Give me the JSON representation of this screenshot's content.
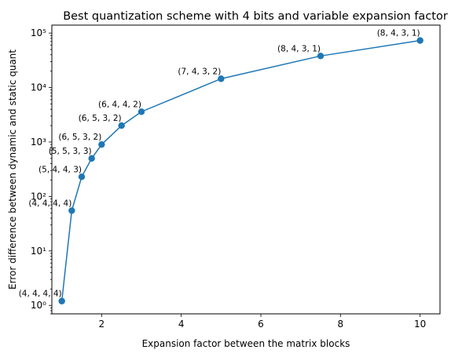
{
  "chart_data": {
    "type": "line",
    "title": "Best quantization scheme with 4 bits and variable expansion factor",
    "xlabel": "Expansion factor between the matrix blocks",
    "ylabel": "Error difference between dynamic and static quant",
    "xlim": [
      0.75,
      10.5
    ],
    "ylim": [
      0.7,
      140000
    ],
    "yscale": "log",
    "grid": false,
    "color": "#1f77b4",
    "x_ticks": [
      2,
      4,
      6,
      8,
      10
    ],
    "x_tick_labels": [
      "2",
      "4",
      "6",
      "8",
      "10"
    ],
    "y_ticks": [
      1,
      10,
      100,
      1000,
      10000,
      100000
    ],
    "y_tick_labels": [
      "10⁰",
      "10¹",
      "10²",
      "10³",
      "10⁴",
      "10⁵"
    ],
    "points": [
      {
        "x": 1.0,
        "y": 1.2,
        "label": "(4, 4, 4, 4)"
      },
      {
        "x": 1.25,
        "y": 55,
        "label": "(4, 4, 4, 4)"
      },
      {
        "x": 1.5,
        "y": 230,
        "label": "(5, 4, 4, 3)"
      },
      {
        "x": 1.75,
        "y": 500,
        "label": "(5, 5, 3, 3)"
      },
      {
        "x": 2.0,
        "y": 900,
        "label": "(6, 5, 3, 2)"
      },
      {
        "x": 2.5,
        "y": 2000,
        "label": "(6, 5, 3, 2)"
      },
      {
        "x": 3.0,
        "y": 3600,
        "label": "(6, 4, 4, 2)"
      },
      {
        "x": 5.0,
        "y": 14500,
        "label": "(7, 4, 3, 2)"
      },
      {
        "x": 7.5,
        "y": 38000,
        "label": "(8, 4, 3, 1)"
      },
      {
        "x": 10.0,
        "y": 73000,
        "label": "(8, 4, 3, 1)"
      }
    ]
  }
}
